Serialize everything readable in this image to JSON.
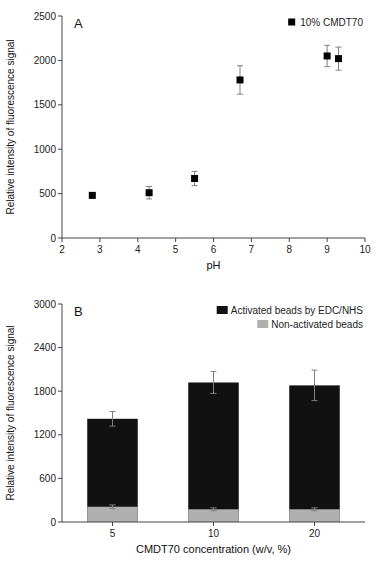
{
  "chart_data": [
    {
      "type": "scatter",
      "title": "A",
      "x": [
        2.8,
        4.3,
        5.5,
        6.7,
        9.0,
        9.3
      ],
      "series": [
        {
          "name": "10% CMDT70",
          "values": [
            480,
            510,
            670,
            1780,
            2050,
            2020
          ],
          "errors": [
            30,
            70,
            80,
            160,
            120,
            130
          ],
          "color": "black",
          "marker": "square"
        }
      ],
      "xlabel": "pH",
      "ylabel": "Relative intensity of fluorescence signal",
      "xlim": [
        2,
        10
      ],
      "ylim": [
        0,
        2500
      ],
      "xticks": [
        2,
        3,
        4,
        5,
        6,
        7,
        8,
        9,
        10
      ],
      "yticks": [
        0,
        500,
        1000,
        1500,
        2000,
        2500
      ],
      "grid": false,
      "legend": "top-right"
    },
    {
      "type": "bar",
      "title": "B",
      "categories": [
        "5",
        "10",
        "20"
      ],
      "series": [
        {
          "name": "Activated beads by EDC/NHS",
          "values": [
            1420,
            1920,
            1880
          ],
          "errors": [
            100,
            150,
            210
          ],
          "color": "#111111"
        },
        {
          "name": "Non-activated beads",
          "values": [
            210,
            175,
            175
          ],
          "errors": [
            25,
            20,
            20
          ],
          "color": "#b0b0b0"
        }
      ],
      "xlabel": "CMDT70 concentration (w/v, %)",
      "ylabel": "Relative intensity of fluorescence signal",
      "ylim": [
        0,
        3000
      ],
      "yticks": [
        0,
        600,
        1200,
        1800,
        2400,
        3000
      ],
      "grid": false,
      "legend": "top-right"
    }
  ]
}
